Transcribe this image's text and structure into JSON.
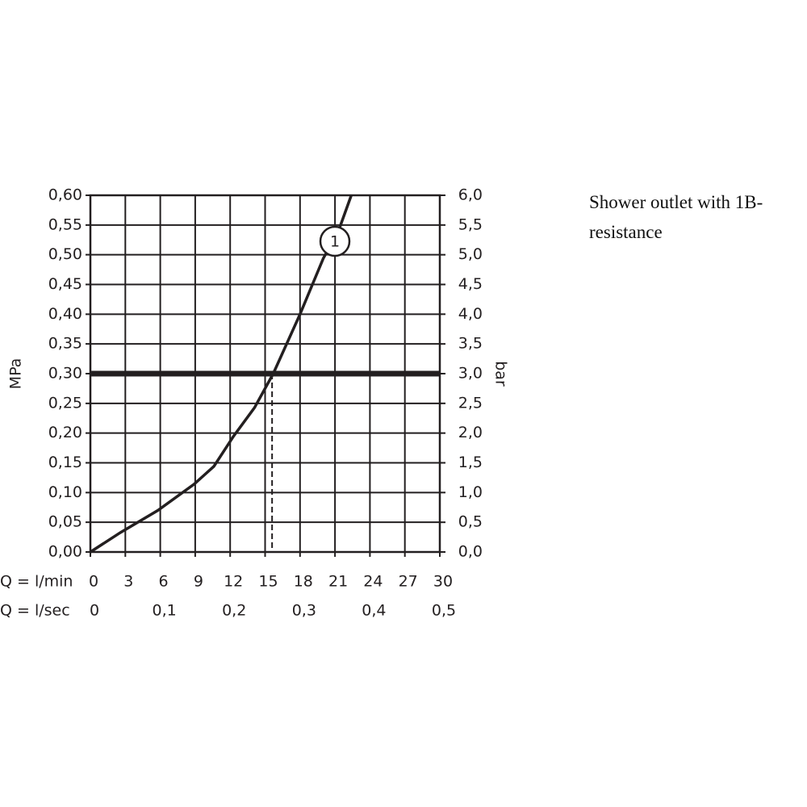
{
  "chart_data": {
    "type": "line",
    "note": "Shower outlet with 1B-resistance",
    "ylabel": "MPa",
    "y2label": "bar",
    "xlabel": "Q = l/min",
    "x2label": "Q = l/sec",
    "xlim": [
      0,
      30
    ],
    "xticks": [
      0,
      3,
      6,
      9,
      12,
      15,
      18,
      21,
      24,
      27,
      30
    ],
    "x2lim": [
      0,
      0.5
    ],
    "x2ticks": [
      0,
      {
        "value": 0.1,
        "label": "0,1"
      },
      {
        "value": 0.2,
        "label": "0,2"
      },
      {
        "value": 0.3,
        "label": "0,3"
      },
      {
        "value": 0.4,
        "label": "0,4"
      },
      {
        "value": 0.5,
        "label": "0,5"
      }
    ],
    "ylim": [
      0,
      0.6
    ],
    "yticks": [
      {
        "value": 0,
        "label": "0,00"
      },
      {
        "value": 0.05,
        "label": "0,05"
      },
      {
        "value": 0.1,
        "label": "0,10"
      },
      {
        "value": 0.15,
        "label": "0,15"
      },
      {
        "value": 0.2,
        "label": "0,20"
      },
      {
        "value": 0.25,
        "label": "0,25"
      },
      {
        "value": 0.3,
        "label": "0,30"
      },
      {
        "value": 0.35,
        "label": "0,35"
      },
      {
        "value": 0.4,
        "label": "0,40"
      },
      {
        "value": 0.45,
        "label": "0,45"
      },
      {
        "value": 0.5,
        "label": "0,50"
      },
      {
        "value": 0.55,
        "label": "0,55"
      },
      {
        "value": 0.6,
        "label": "0,60"
      }
    ],
    "y2lim": [
      0,
      6
    ],
    "y2ticks": [
      {
        "value": 0,
        "label": "0,0"
      },
      {
        "value": 0.5,
        "label": "0,5"
      },
      {
        "value": 1,
        "label": "1,0"
      },
      {
        "value": 1.5,
        "label": "1,5"
      },
      {
        "value": 2,
        "label": "2,0"
      },
      {
        "value": 2.5,
        "label": "2,5"
      },
      {
        "value": 3,
        "label": "3,0"
      },
      {
        "value": 3.5,
        "label": "3,5"
      },
      {
        "value": 4,
        "label": "4,0"
      },
      {
        "value": 4.5,
        "label": "4,5"
      },
      {
        "value": 5,
        "label": "5,0"
      },
      {
        "value": 5.5,
        "label": "5,5"
      },
      {
        "value": 6,
        "label": "6,0"
      }
    ],
    "grid": true,
    "reference_y": 0.3,
    "reference_x": 15.6,
    "series": [
      {
        "name": "1",
        "color": "#231f20",
        "x": [
          0,
          2.6,
          5.8,
          8.9,
          10.6,
          12.3,
          14.1,
          15.7,
          18.0,
          20.0,
          21.3,
          22.4
        ],
        "values": [
          0,
          0.033,
          0.07,
          0.114,
          0.144,
          0.195,
          0.243,
          0.3,
          0.4,
          0.494,
          0.54,
          0.6
        ]
      }
    ]
  }
}
